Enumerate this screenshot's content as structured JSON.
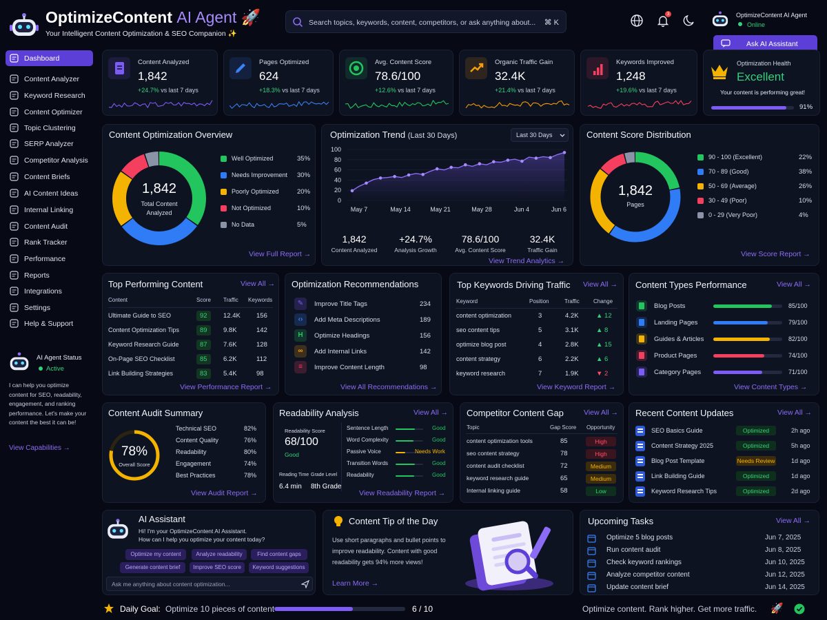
{
  "header": {
    "title_main": "OptimizeContent",
    "title_accent": "AI Agent",
    "subtitle": "Your Intelligent Content Optimization & SEO Companion ✨",
    "search_placeholder": "Search topics, keywords, content, competitors, or ask anything about...",
    "shortcut": "⌘ K",
    "notif_count": "3",
    "user_name": "OptimizeContent AI Agent",
    "user_status": "Online",
    "ask_button": "Ask AI Assistant"
  },
  "sidebar": {
    "items": [
      {
        "label": "Dashboard",
        "icon": "grid-icon"
      },
      {
        "label": "Content Analyzer",
        "icon": "analyzer-icon"
      },
      {
        "label": "Keyword Research",
        "icon": "key-icon"
      },
      {
        "label": "Content Optimizer",
        "icon": "edit-icon"
      },
      {
        "label": "Topic Clustering",
        "icon": "cluster-icon"
      },
      {
        "label": "SERP Analyzer",
        "icon": "serp-icon"
      },
      {
        "label": "Competitor Analysis",
        "icon": "competitor-icon"
      },
      {
        "label": "Content Briefs",
        "icon": "brief-icon"
      },
      {
        "label": "AI Content Ideas",
        "icon": "bulb-icon"
      },
      {
        "label": "Internal Linking",
        "icon": "link-icon"
      },
      {
        "label": "Content Audit",
        "icon": "audit-icon"
      },
      {
        "label": "Rank Tracker",
        "icon": "rank-icon"
      },
      {
        "label": "Performance",
        "icon": "performance-icon"
      },
      {
        "label": "Reports",
        "icon": "report-icon"
      },
      {
        "label": "Integrations",
        "icon": "integration-icon"
      },
      {
        "label": "Settings",
        "icon": "gear-icon"
      },
      {
        "label": "Help & Support",
        "icon": "help-icon"
      }
    ],
    "agent_status_title": "AI Agent Status",
    "agent_status_value": "Active",
    "agent_text": "I can help you optimize content for SEO, readability, engagement, and ranking performance. Let's make your content the best it can be!",
    "view_capabilities": "View Capabilities →"
  },
  "stats": [
    {
      "title": "Content Analyzed",
      "value": "1,842",
      "delta": "+24.7%",
      "period": "vs last 7 days",
      "color": "#7c5cf5"
    },
    {
      "title": "Pages Optimized",
      "value": "624",
      "delta": "+18.3%",
      "period": "vs last 7 days",
      "color": "#3b82f6"
    },
    {
      "title": "Avg. Content Score",
      "value": "78.6/100",
      "delta": "+12.6%",
      "period": "vs last 7 days",
      "color": "#22c55e"
    },
    {
      "title": "Organic Traffic Gain",
      "value": "32.4K",
      "delta": "+21.4%",
      "period": "vs last 7 days",
      "color": "#f59e0b"
    },
    {
      "title": "Keywords Improved",
      "value": "1,248",
      "delta": "+19.6%",
      "period": "vs last 7 days",
      "color": "#f43f5e"
    }
  ],
  "health": {
    "title": "Optimization Health",
    "value": "Excellent",
    "text": "Your content is performing great!",
    "percent_label": "91%",
    "percent": 0.91
  },
  "overview": {
    "title": "Content Optimization Overview",
    "center_value": "1,842",
    "center_label": "Total Content Analyzed",
    "legend": [
      {
        "label": "Well Optimized",
        "pct": "35%",
        "value": 35,
        "color": "#22c55e"
      },
      {
        "label": "Needs Improvement",
        "pct": "30%",
        "value": 30,
        "color": "#2f7cf6"
      },
      {
        "label": "Poorly Optimized",
        "pct": "20%",
        "value": 20,
        "color": "#f5b301"
      },
      {
        "label": "Not Optimized",
        "pct": "10%",
        "value": 10,
        "color": "#f43f5e"
      },
      {
        "label": "No Data",
        "pct": "5%",
        "value": 5,
        "color": "#8b93a7"
      }
    ],
    "link": "View Full Report →"
  },
  "trend": {
    "title": "Optimization Trend",
    "subtitle": "(Last 30 Days)",
    "range": "Last 30 Days",
    "yticks": [
      "100",
      "80",
      "60",
      "40",
      "20",
      "0"
    ],
    "xticks": [
      "May 7",
      "May 14",
      "May 21",
      "May 28",
      "Jun 4",
      "Jun 6"
    ],
    "summary": [
      {
        "value": "1,842",
        "label": "Content Analyzed"
      },
      {
        "value": "+24.7%",
        "label": "Analysis Growth"
      },
      {
        "value": "78.6/100",
        "label": "Avg. Content Score"
      },
      {
        "value": "32.4K",
        "label": "Traffic Gain"
      }
    ],
    "link": "View Trend Analytics →"
  },
  "chart_data": {
    "type": "line",
    "title": "Optimization Trend",
    "x": [
      "May 7",
      "May 8",
      "May 9",
      "May 10",
      "May 11",
      "May 12",
      "May 13",
      "May 14",
      "May 15",
      "May 16",
      "May 17",
      "May 18",
      "May 19",
      "May 20",
      "May 21",
      "May 22",
      "May 23",
      "May 24",
      "May 25",
      "May 26",
      "May 27",
      "May 28",
      "May 29",
      "May 30",
      "May 31",
      "Jun 1",
      "Jun 2",
      "Jun 3",
      "Jun 4",
      "Jun 5",
      "Jun 6"
    ],
    "series": [
      {
        "values": [
          19,
          28,
          34,
          41,
          44,
          45,
          47,
          45,
          50,
          53,
          51,
          57,
          62,
          60,
          65,
          64,
          70,
          67,
          72,
          70,
          76,
          75,
          79,
          81,
          77,
          85,
          83,
          86,
          84,
          90,
          94
        ]
      }
    ],
    "ylim": [
      0,
      100
    ]
  },
  "distribution": {
    "title": "Content Score Distribution",
    "center_value": "1,842",
    "center_label": "Pages",
    "legend": [
      {
        "label": "90 - 100 (Excellent)",
        "pct": "22%",
        "value": 22,
        "color": "#22c55e"
      },
      {
        "label": "70 - 89 (Good)",
        "pct": "38%",
        "value": 38,
        "color": "#2f7cf6"
      },
      {
        "label": "50 - 69 (Average)",
        "pct": "26%",
        "value": 26,
        "color": "#f5b301"
      },
      {
        "label": "30 - 49 (Poor)",
        "pct": "10%",
        "value": 10,
        "color": "#f43f5e"
      },
      {
        "label": "0 - 29 (Very Poor)",
        "pct": "4%",
        "value": 4,
        "color": "#8b93a7"
      }
    ],
    "link": "View Score Report →"
  },
  "top_content": {
    "title": "Top Performing Content",
    "view_all": "View All →",
    "headers": [
      "Content",
      "Score",
      "Traffic",
      "Keywords"
    ],
    "rows": [
      [
        "Ultimate Guide to SEO",
        "92",
        "12.4K",
        "156"
      ],
      [
        "Content Optimization Tips",
        "89",
        "9.8K",
        "142"
      ],
      [
        "Keyword Research Guide",
        "87",
        "7.6K",
        "128"
      ],
      [
        "On-Page SEO Checklist",
        "85",
        "6.2K",
        "112"
      ],
      [
        "Link Building Strategies",
        "83",
        "5.4K",
        "98"
      ]
    ],
    "link": "View Performance Report →"
  },
  "recommendations": {
    "title": "Optimization Recommendations",
    "items": [
      {
        "label": "Improve Title Tags",
        "count": "234",
        "color": "#7c5cf5",
        "icon": "pencil-icon",
        "glyph": "✎"
      },
      {
        "label": "Add Meta Descriptions",
        "count": "189",
        "color": "#3b82f6",
        "icon": "code-icon",
        "glyph": "‹›"
      },
      {
        "label": "Optimize Headings",
        "count": "156",
        "color": "#22c55e",
        "icon": "heading-icon",
        "glyph": "H"
      },
      {
        "label": "Add Internal Links",
        "count": "142",
        "color": "#f59e0b",
        "icon": "link-icon",
        "glyph": "∞"
      },
      {
        "label": "Improve Content Length",
        "count": "98",
        "color": "#f43f5e",
        "icon": "length-icon",
        "glyph": "≡"
      }
    ],
    "link": "View All Recommendations →"
  },
  "keywords": {
    "title": "Top Keywords Driving Traffic",
    "view_all": "View All →",
    "headers": [
      "Keyword",
      "Position",
      "Traffic",
      "Change"
    ],
    "rows": [
      {
        "k": "content optimization",
        "p": "3",
        "t": "4.2K",
        "c": "▲ 12",
        "up": true
      },
      {
        "k": "seo content tips",
        "p": "5",
        "t": "3.1K",
        "c": "▲ 8",
        "up": true
      },
      {
        "k": "optimize blog post",
        "p": "4",
        "t": "2.8K",
        "c": "▲ 15",
        "up": true
      },
      {
        "k": "content strategy",
        "p": "6",
        "t": "2.2K",
        "c": "▲ 6",
        "up": true
      },
      {
        "k": "keyword research",
        "p": "7",
        "t": "1.9K",
        "c": "▼ 2",
        "up": false
      }
    ],
    "link": "View Keyword Report →"
  },
  "content_types": {
    "title": "Content Types Performance",
    "view_all": "View All →",
    "items": [
      {
        "label": "Blog Posts",
        "score": "85/100",
        "value": 85,
        "color": "#22c55e",
        "icon": "blog-icon"
      },
      {
        "label": "Landing Pages",
        "score": "79/100",
        "value": 79,
        "color": "#2f7cf6",
        "icon": "landing-icon"
      },
      {
        "label": "Guides & Articles",
        "score": "82/100",
        "value": 82,
        "color": "#f5b301",
        "icon": "guide-icon"
      },
      {
        "label": "Product Pages",
        "score": "74/100",
        "value": 74,
        "color": "#f43f5e",
        "icon": "product-icon"
      },
      {
        "label": "Category Pages",
        "score": "71/100",
        "value": 71,
        "color": "#7c5cf5",
        "icon": "category-icon"
      }
    ],
    "link": "View Content Types →"
  },
  "audit": {
    "title": "Content Audit Summary",
    "score": "78%",
    "score_label": "Overall Score",
    "score_value": 78,
    "items": [
      {
        "label": "Technical SEO",
        "pct": "82%"
      },
      {
        "label": "Content Quality",
        "pct": "76%"
      },
      {
        "label": "Readability",
        "pct": "80%"
      },
      {
        "label": "Engagement",
        "pct": "74%"
      },
      {
        "label": "Best Practices",
        "pct": "78%"
      }
    ],
    "link": "View Audit Report →"
  },
  "readability": {
    "title": "Readability Analysis",
    "view_all": "View All →",
    "score_label": "Readability Score",
    "score": "68/100",
    "score_grade": "Good",
    "reading_time_label": "Reading Time",
    "reading_time": "6.4 min",
    "grade_label": "Grade Level",
    "grade": "8th Grade",
    "metrics": [
      {
        "label": "Sentence Length",
        "status": "Good",
        "value": 0.7,
        "color": "#22c55e"
      },
      {
        "label": "Word Complexity",
        "status": "Good",
        "value": 0.65,
        "color": "#22c55e"
      },
      {
        "label": "Passive Voice",
        "status": "Needs Work",
        "value": 0.35,
        "color": "#f5b301"
      },
      {
        "label": "Transition Words",
        "status": "Good",
        "value": 0.7,
        "color": "#22c55e"
      },
      {
        "label": "Readability",
        "status": "Good",
        "value": 0.68,
        "color": "#22c55e"
      }
    ],
    "link": "View Readability Report →"
  },
  "gap": {
    "title": "Competitor Content Gap",
    "view_all": "View All →",
    "headers": [
      "Topic",
      "Gap Score",
      "Opportunity"
    ],
    "rows": [
      {
        "topic": "content optimization tools",
        "score": "85",
        "opp": "High",
        "color": "#ff4d6a",
        "bg": "#3a1520"
      },
      {
        "topic": "seo content strategy",
        "score": "78",
        "opp": "High",
        "color": "#ff4d6a",
        "bg": "#3a1520"
      },
      {
        "topic": "content audit checklist",
        "score": "72",
        "opp": "Medium",
        "color": "#f5b301",
        "bg": "#3a2c0d"
      },
      {
        "topic": "keyword research guide",
        "score": "65",
        "opp": "Medium",
        "color": "#f5b301",
        "bg": "#3a2c0d"
      },
      {
        "topic": "Internal linking guide",
        "score": "58",
        "opp": "Low",
        "color": "#34d17a",
        "bg": "#0f2f1e"
      }
    ]
  },
  "updates": {
    "title": "Recent Content Updates",
    "view_all": "View All →",
    "rows": [
      {
        "title": "SEO Basics Guide",
        "status": "Optimized",
        "time": "2h ago",
        "color": "#34d17a",
        "bg": "#0f2f1e"
      },
      {
        "title": "Content Strategy 2025",
        "status": "Optimized",
        "time": "5h ago",
        "color": "#34d17a",
        "bg": "#0f2f1e"
      },
      {
        "title": "Blog Post Template",
        "status": "Needs Review",
        "time": "1d ago",
        "color": "#f5b301",
        "bg": "#3a2c0d"
      },
      {
        "title": "Link Building Guide",
        "status": "Optimized",
        "time": "1d ago",
        "color": "#34d17a",
        "bg": "#0f2f1e"
      },
      {
        "title": "Keyword Research Tips",
        "status": "Optimized",
        "time": "2d ago",
        "color": "#34d17a",
        "bg": "#0f2f1e"
      }
    ]
  },
  "assistant": {
    "title": "AI Assistant",
    "greeting1": "Hi! I'm your OptimizeContent AI Assistant.",
    "greeting2": "How can I help you optimize your content today?",
    "chips": [
      "Optimize my content",
      "Analyze readability",
      "Find content gaps",
      "Generate content brief",
      "Improve SEO score",
      "Keyword suggestions"
    ],
    "input_placeholder": "Ask me anything about content optimization..."
  },
  "tip": {
    "title": "Content Tip of the Day",
    "text": "Use short paragraphs and bullet points to improve readability. Content with good readability gets 94% more views!",
    "link": "Learn More →"
  },
  "tasks": {
    "title": "Upcoming Tasks",
    "view_all": "View All →",
    "items": [
      {
        "label": "Optimize 5 blog posts",
        "date": "Jun 7, 2025"
      },
      {
        "label": "Run content audit",
        "date": "Jun 8, 2025"
      },
      {
        "label": "Check keyword rankings",
        "date": "Jun 10, 2025"
      },
      {
        "label": "Analyze competitor content",
        "date": "Jun 12, 2025"
      },
      {
        "label": "Update content brief",
        "date": "Jun 14, 2025"
      }
    ]
  },
  "footer": {
    "goal_label": "Daily Goal:",
    "goal_text": "Optimize 10 pieces of content",
    "goal_progress": "6 / 10",
    "goal_fraction": 0.6,
    "tagline": "Optimize content. Rank higher. Get more traffic."
  }
}
